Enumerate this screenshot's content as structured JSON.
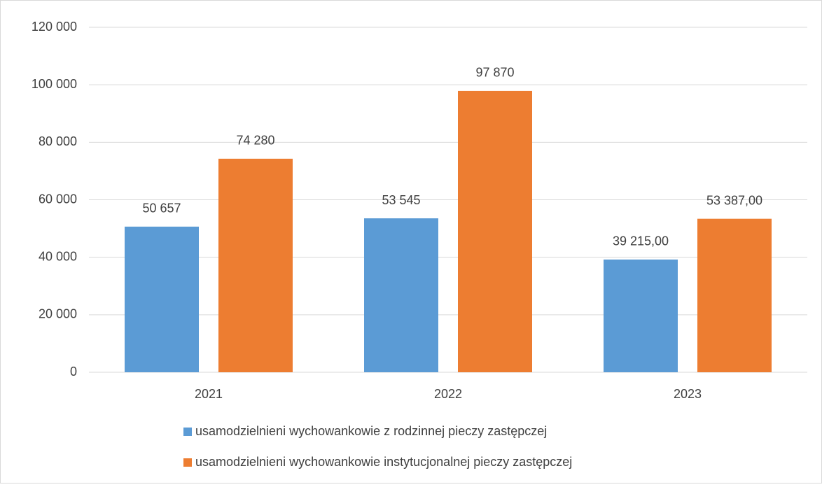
{
  "chart_data": {
    "type": "bar",
    "categories": [
      "2021",
      "2022",
      "2023"
    ],
    "series": [
      {
        "name": "usamodzielnieni wychowankowie z rodzinnej pieczy zastępczej",
        "color": "#5b9bd5",
        "values": [
          50657,
          53545,
          39215
        ],
        "value_labels": [
          "50 657",
          "53 545",
          "39 215,00"
        ]
      },
      {
        "name": "usamodzielnieni wychowankowie instytucjonalnej pieczy zastępczej",
        "color": "#ed7d31",
        "values": [
          74280,
          97870,
          53387
        ],
        "value_labels": [
          "74 280",
          "97 870",
          "53 387,00"
        ]
      }
    ],
    "ylim": [
      0,
      120000
    ],
    "yticks": [
      0,
      {
        "value": 20000,
        "label": "20 000"
      },
      {
        "value": 40000,
        "label": "40 000"
      },
      {
        "value": 60000,
        "label": "60 000"
      },
      {
        "value": 80000,
        "label": "80 000"
      },
      {
        "value": 100000,
        "label": "100 000"
      },
      {
        "value": 120000,
        "label": "120 000"
      }
    ],
    "grid": true,
    "legend": "bottom"
  }
}
